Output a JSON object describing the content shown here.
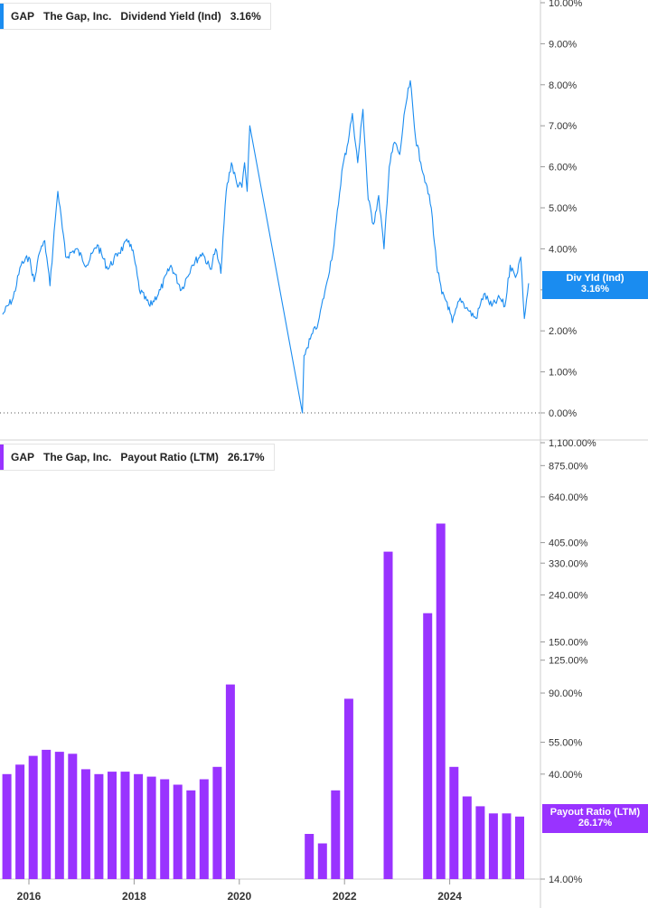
{
  "colors": {
    "yield": "#1a8cf0",
    "payout": "#9933ff",
    "axis_text": "#333333",
    "grid": "#e6e6e6"
  },
  "top_panel": {
    "legend": {
      "ticker": "GAP",
      "company": "The Gap, Inc.",
      "metric": "Dividend Yield (Ind)",
      "value": "3.16%"
    },
    "tag": {
      "label": "Div Yld (Ind)",
      "value": "3.16%"
    }
  },
  "bottom_panel": {
    "legend": {
      "ticker": "GAP",
      "company": "The Gap, Inc.",
      "metric": "Payout Ratio (LTM)",
      "value": "26.17%"
    },
    "tag": {
      "label": "Payout Ratio (LTM)",
      "value": "26.17%"
    }
  },
  "chart_data": [
    {
      "type": "line",
      "title": "Dividend Yield (Ind)",
      "ylim": [
        0,
        10
      ],
      "y_ticks": [
        "0.00%",
        "1.00%",
        "2.00%",
        "3.00%",
        "4.00%",
        "5.00%",
        "6.00%",
        "7.00%",
        "8.00%",
        "9.00%",
        "10.00%"
      ],
      "x_ticks": [
        "2016",
        "2018",
        "2020",
        "2022",
        "2024"
      ],
      "series": [
        {
          "name": "Dividend Yield (Ind)",
          "x": [
            2015.5,
            2015.7,
            2015.85,
            2016.0,
            2016.1,
            2016.2,
            2016.3,
            2016.4,
            2016.5,
            2016.55,
            2016.7,
            2016.9,
            2017.1,
            2017.3,
            2017.5,
            2017.7,
            2017.9,
            2018.0,
            2018.1,
            2018.3,
            2018.5,
            2018.7,
            2018.9,
            2019.1,
            2019.3,
            2019.45,
            2019.55,
            2019.65,
            2019.75,
            2019.85,
            2019.95,
            2020.05,
            2020.1,
            2020.15,
            2020.2,
            2021.2,
            2021.23,
            2021.35,
            2021.5,
            2021.65,
            2021.8,
            2021.95,
            2022.05,
            2022.15,
            2022.25,
            2022.35,
            2022.45,
            2022.55,
            2022.65,
            2022.75,
            2022.85,
            2022.95,
            2023.05,
            2023.15,
            2023.25,
            2023.35,
            2023.45,
            2023.55,
            2023.65,
            2023.75,
            2023.85,
            2023.95,
            2024.05,
            2024.2,
            2024.35,
            2024.5,
            2024.65,
            2024.8,
            2024.95,
            2025.05,
            2025.15,
            2025.25,
            2025.35,
            2025.42,
            2025.5
          ],
          "values": [
            2.4,
            2.8,
            3.6,
            3.8,
            3.2,
            3.9,
            4.2,
            3.1,
            4.7,
            5.4,
            3.8,
            4.0,
            3.6,
            4.1,
            3.5,
            3.9,
            4.2,
            3.8,
            3.0,
            2.6,
            3.0,
            3.6,
            3.0,
            3.6,
            3.9,
            3.5,
            4.0,
            3.4,
            5.4,
            6.1,
            5.6,
            5.5,
            6.1,
            5.4,
            7.0,
            0.0,
            1.4,
            1.8,
            2.2,
            3.1,
            4.1,
            5.9,
            6.5,
            7.3,
            6.1,
            7.4,
            5.2,
            4.6,
            5.3,
            4.0,
            6.0,
            6.6,
            6.3,
            7.4,
            8.1,
            6.7,
            6.1,
            5.6,
            5.0,
            3.6,
            2.9,
            2.7,
            2.2,
            2.8,
            2.5,
            2.3,
            2.9,
            2.6,
            2.8,
            2.6,
            3.6,
            3.3,
            3.8,
            2.3,
            3.16
          ]
        }
      ]
    },
    {
      "type": "bar",
      "title": "Payout Ratio (LTM)",
      "y_scale": "log",
      "ylim": [
        14,
        1100
      ],
      "y_ticks": [
        "14.00%",
        "26.17%",
        "40.00%",
        "55.00%",
        "90.00%",
        "125.00%",
        "150.00%",
        "240.00%",
        "330.00%",
        "405.00%",
        "640.00%",
        "875.00%",
        "1,100.00%"
      ],
      "x_ticks": [
        "2016",
        "2018",
        "2020",
        "2022",
        "2024"
      ],
      "series": [
        {
          "name": "Payout Ratio (LTM)",
          "x": [
            2015.08,
            2015.33,
            2015.58,
            2015.83,
            2016.08,
            2016.33,
            2016.58,
            2016.83,
            2017.08,
            2017.33,
            2017.58,
            2017.83,
            2018.08,
            2018.33,
            2018.58,
            2018.83,
            2019.08,
            2019.33,
            2019.58,
            2019.83,
            2020.08,
            2021.33,
            2021.58,
            2021.83,
            2022.08,
            2022.83,
            2023.58,
            2023.83,
            2024.08,
            2024.33,
            2024.58,
            2024.83,
            2025.08,
            2025.33
          ],
          "values": [
            33,
            35,
            40,
            44,
            48,
            51,
            50,
            49,
            42,
            40,
            41,
            41,
            40,
            39,
            38,
            36,
            34,
            38,
            43,
            98,
            0,
            22,
            20,
            34,
            85,
            370,
            200,
            490,
            43,
            32,
            29,
            27,
            27,
            26.17
          ]
        }
      ]
    }
  ]
}
